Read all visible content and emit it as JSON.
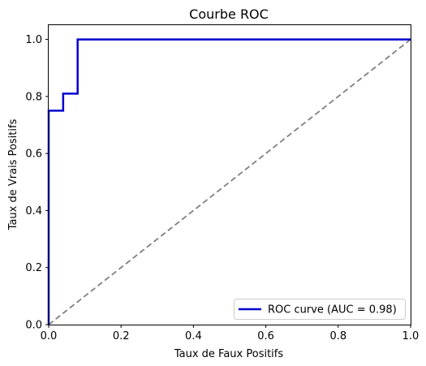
{
  "chart_data": {
    "type": "line",
    "title": "Courbe ROC",
    "xlabel": "Taux de Faux Positifs",
    "ylabel": "Taux de Vrais Positifs",
    "xlim": [
      0.0,
      1.0
    ],
    "ylim": [
      0.0,
      1.05
    ],
    "xticks": [
      "0.0",
      "0.2",
      "0.4",
      "0.6",
      "0.8",
      "1.0"
    ],
    "yticks": [
      "0.0",
      "0.2",
      "0.4",
      "0.6",
      "0.8",
      "1.0"
    ],
    "grid": false,
    "legend_position": "lower-right",
    "series": [
      {
        "name": "ROC curve (AUC = 0.98)",
        "color": "#0000cc",
        "style": "solid",
        "x": [
          0.0,
          0.0,
          0.0,
          0.04,
          0.04,
          0.08,
          0.08,
          1.0
        ],
        "y": [
          0.0,
          0.05,
          0.75,
          0.75,
          0.81,
          0.81,
          1.0,
          1.0
        ]
      },
      {
        "color": "#808080",
        "style": "dashed",
        "x": [
          0.0,
          1.0
        ],
        "y": [
          0.0,
          1.0
        ]
      }
    ]
  }
}
